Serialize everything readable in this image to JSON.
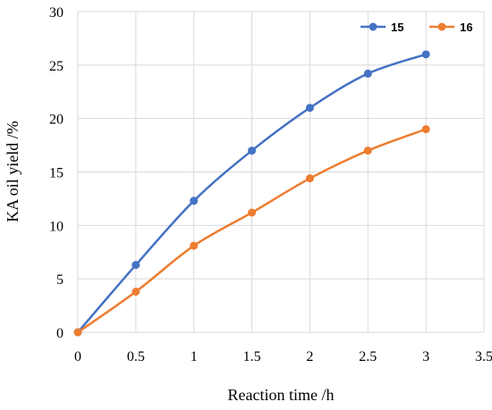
{
  "chart_data": {
    "type": "line",
    "title": "",
    "xlabel": "Reaction time /h",
    "ylabel": "KA oil yield /%",
    "xlim": [
      0,
      3.5
    ],
    "ylim": [
      0,
      30
    ],
    "x_ticks": [
      0,
      0.5,
      1,
      1.5,
      2,
      2.5,
      3,
      3.5
    ],
    "x_tick_labels": [
      "0",
      "0.5",
      "1",
      "1.5",
      "2",
      "2.5",
      "3",
      "3.5"
    ],
    "y_ticks": [
      0,
      5,
      10,
      15,
      20,
      25,
      30
    ],
    "y_tick_labels": [
      "0",
      "5",
      "10",
      "15",
      "20",
      "25",
      "30"
    ],
    "grid": true,
    "legend_position": "top-right",
    "smooth": true,
    "series": [
      {
        "name": "15",
        "color": "#4472C4",
        "x": [
          0,
          0.5,
          1,
          1.5,
          2,
          2.5,
          3
        ],
        "y": [
          0,
          6.3,
          12.3,
          17.0,
          21.0,
          24.2,
          26.0
        ]
      },
      {
        "name": "16",
        "color": "#ED7D31",
        "x": [
          0,
          0.5,
          1,
          1.5,
          2,
          2.5,
          3
        ],
        "y": [
          0,
          3.8,
          8.1,
          11.2,
          14.4,
          17.0,
          19.0
        ]
      }
    ]
  }
}
